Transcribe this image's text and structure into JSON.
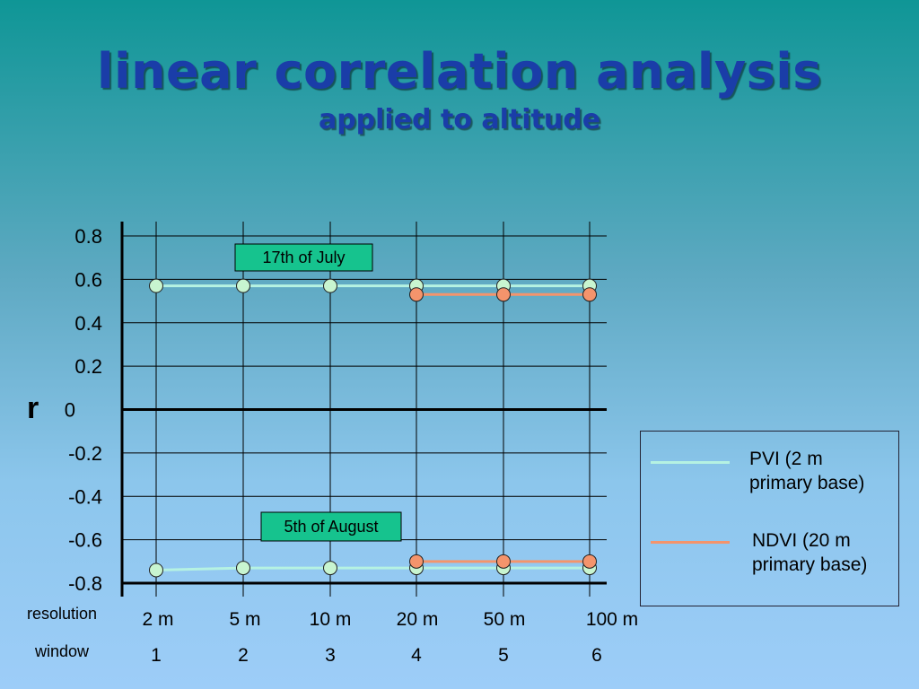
{
  "slide": {
    "title": "linear correlation analysis",
    "subtitle": "applied to altitude"
  },
  "colors": {
    "pvi": "#c8f5d0",
    "pvi_line": "#b5f2e2",
    "ndvi": "#f4946c",
    "annotation_bg": "#16c38e",
    "title": "#1a3da8"
  },
  "chart_data": {
    "type": "line",
    "ylabel": "r",
    "ylim": [
      -0.8,
      0.8
    ],
    "yticks": [
      "0.8",
      "0.6",
      "0.4",
      "0.2",
      "0",
      "-0.2",
      "-0.4",
      "-0.6",
      "-0.8"
    ],
    "ytick_values": [
      0.8,
      0.6,
      0.4,
      0.2,
      0,
      -0.2,
      -0.4,
      -0.6,
      -0.8
    ],
    "row_labels": {
      "resolution": "resolution",
      "window": "window"
    },
    "resolution": [
      "2 m",
      "5 m",
      "10 m",
      "20 m",
      "50 m",
      "100 m"
    ],
    "window": [
      "1",
      "2",
      "3",
      "4",
      "5",
      "6"
    ],
    "grid": true,
    "legend_placement": "right",
    "groups": [
      {
        "annotation": "17th of July",
        "series": [
          {
            "name": "PVI (2 m\nprimary base)",
            "key": "pvi",
            "x_index": [
              0,
              1,
              2,
              3,
              4,
              5
            ],
            "values": [
              0.57,
              0.57,
              0.57,
              0.57,
              0.57,
              0.57
            ]
          },
          {
            "name": "NDVI (20 m\nprimary base)",
            "key": "ndvi",
            "x_index": [
              3,
              4,
              5
            ],
            "values": [
              0.53,
              0.53,
              0.53
            ]
          }
        ]
      },
      {
        "annotation": "5th of August",
        "series": [
          {
            "name": "PVI (2 m\nprimary base)",
            "key": "pvi",
            "x_index": [
              0,
              1,
              2,
              3,
              4,
              5
            ],
            "values": [
              -0.74,
              -0.73,
              -0.73,
              -0.73,
              -0.73,
              -0.73
            ]
          },
          {
            "name": "NDVI (20 m\nprimary base)",
            "key": "ndvi",
            "x_index": [
              3,
              4,
              5
            ],
            "values": [
              -0.7,
              -0.7,
              -0.7
            ]
          }
        ]
      }
    ],
    "legend": [
      {
        "label": "PVI (2 m\nprimary base)",
        "key": "pvi"
      },
      {
        "label": "NDVI (20 m\nprimary base)",
        "key": "ndvi"
      }
    ]
  }
}
